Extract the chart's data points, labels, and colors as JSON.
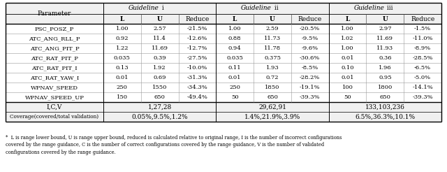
{
  "guideline_headers": [
    "Guideline i",
    "Guideline ii",
    "Guideline iii"
  ],
  "sub_headers": [
    "L",
    "U",
    "Reduce"
  ],
  "parameters": [
    "PSC_POSZ_P",
    "ATC_ANG_RLL_P",
    "ATC_ANG_PIT_P",
    "ATC_RAT_PIT_P",
    "ATC_RAT_PIT_I",
    "ATC_RAT_YAW_I",
    "WPNAV_SPEED",
    "WPNAV_SPEED_UP"
  ],
  "data": [
    [
      [
        "1.00",
        "2.57",
        "-21.5%"
      ],
      [
        "1.00",
        "2.59",
        "-20.5%"
      ],
      [
        "1.00",
        "2.97",
        "-1.5%"
      ]
    ],
    [
      [
        "0.92",
        "11.4",
        "-12.6%"
      ],
      [
        "0.88",
        "11.73",
        "-9.5%"
      ],
      [
        "1.02",
        "11.69",
        "-11.0%"
      ]
    ],
    [
      [
        "1.22",
        "11.69",
        "-12.7%"
      ],
      [
        "0.94",
        "11.78",
        "-9.6%"
      ],
      [
        "1.00",
        "11.93",
        "-8.9%"
      ]
    ],
    [
      [
        "0.035",
        "0.39",
        "-27.5%"
      ],
      [
        "0.035",
        "0.375",
        "-30.6%"
      ],
      [
        "0.01",
        "0.36",
        "-28.5%"
      ]
    ],
    [
      [
        "0.13",
        "1.92",
        "-10.0%"
      ],
      [
        "0.11",
        "1.93",
        "-8.5%"
      ],
      [
        "0.10",
        "1.96",
        "-6.5%"
      ]
    ],
    [
      [
        "0.01",
        "0.69",
        "-31.3%"
      ],
      [
        "0.01",
        "0.72",
        "-28.2%"
      ],
      [
        "0.01",
        "0.95",
        "-5.0%"
      ]
    ],
    [
      [
        "250",
        "1550",
        "-34.3%"
      ],
      [
        "250",
        "1850",
        "-19.1%"
      ],
      [
        "100",
        "1800",
        "-14.1%"
      ]
    ],
    [
      [
        "150",
        "650",
        "-49.4%"
      ],
      [
        "50",
        "650",
        "-39.3%"
      ],
      [
        "50",
        "650",
        "-39.3%"
      ]
    ]
  ],
  "icv_row": [
    "1,27,28",
    "29,62,91",
    "133,103,236"
  ],
  "coverage_row": [
    "0.05%,9.5%,1.2%",
    "1.4%,21.9%,3.9%",
    "6.5%,36.3%,10.1%"
  ],
  "footnote_star": "* ",
  "footnote_bold": "L",
  "footnote_text1": " is range lower bound, ",
  "footnote_bold2": "U",
  "footnote_text2": " is range upper bound, reduced is calculated relative to original range, ",
  "footnote_bold3": "I",
  "footnote_text3": " is the number of incorrect configurations covered by the range guidance, ",
  "footnote_bold4": "C",
  "footnote_text4": " is the number of correct configurations covered by the range guidance, ",
  "footnote_bold5": "V",
  "footnote_text5": " is the number of validated configurations covered by the range guidance.",
  "footnote_full": "*  L is range lower bound, U is range upper bound, reduced is calculated relative to original range, I is the number of incorrect configurations\ncovered by the range guidance, C is the number of correct configurations covered by the range guidance, V is the number of validated\nconfigurations covered by the range guidance."
}
